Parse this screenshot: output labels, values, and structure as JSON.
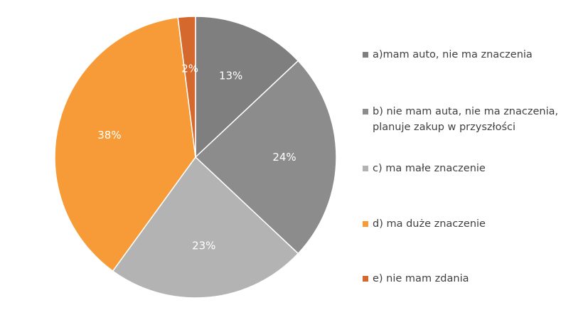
{
  "chart_data": {
    "type": "pie",
    "title": "",
    "categories": [
      "a)mam auto, nie ma znaczenia",
      "b) nie mam auta, nie ma znaczenia, planuje zakup w przyszłości",
      "c) ma małe znaczenie",
      "d) ma duże znaczenie",
      "e) nie mam zdania"
    ],
    "values": [
      13,
      24,
      23,
      38,
      2
    ],
    "value_labels": [
      "13%",
      "24%",
      "23%",
      "38%",
      "2%"
    ],
    "colors": [
      "#7f7f7f",
      "#8c8c8c",
      "#b3b3b3",
      "#f79b38",
      "#d5692d"
    ],
    "legend_position": "right",
    "start_angle": "12 o'clock, clockwise"
  }
}
